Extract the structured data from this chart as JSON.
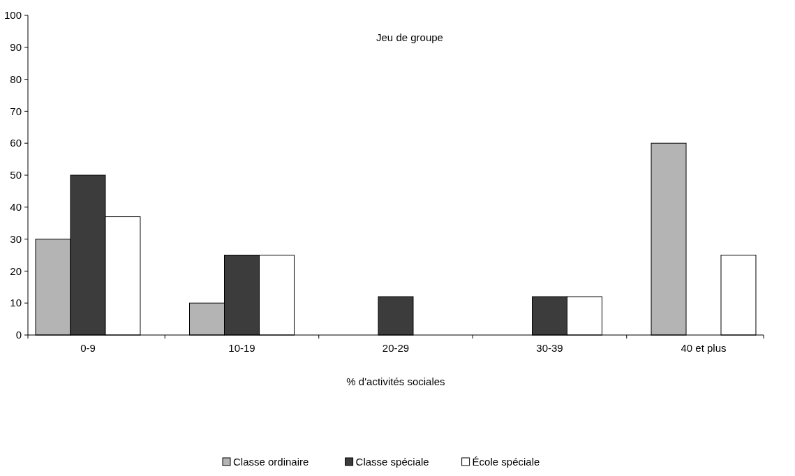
{
  "chart_data": {
    "type": "bar",
    "title": "Jeu de groupe",
    "xlabel": "% d'activités sociales",
    "categories": [
      "0-9",
      "10-19",
      "20-29",
      "30-39",
      "40 et plus"
    ],
    "series": [
      {
        "name": "Classe ordinaire",
        "color": "#b4b4b4",
        "values": [
          30,
          10,
          null,
          null,
          60
        ]
      },
      {
        "name": "Classe spéciale",
        "color": "#3c3c3c",
        "values": [
          50,
          25,
          12,
          12,
          null
        ]
      },
      {
        "name": "École spéciale",
        "color": "#ffffff",
        "values": [
          37,
          25,
          null,
          12,
          25
        ]
      }
    ],
    "ylim": [
      0,
      100
    ],
    "yticks": [
      0,
      10,
      20,
      30,
      40,
      50,
      60,
      70,
      80,
      90,
      100
    ],
    "grid": false,
    "legend": "bottom"
  }
}
